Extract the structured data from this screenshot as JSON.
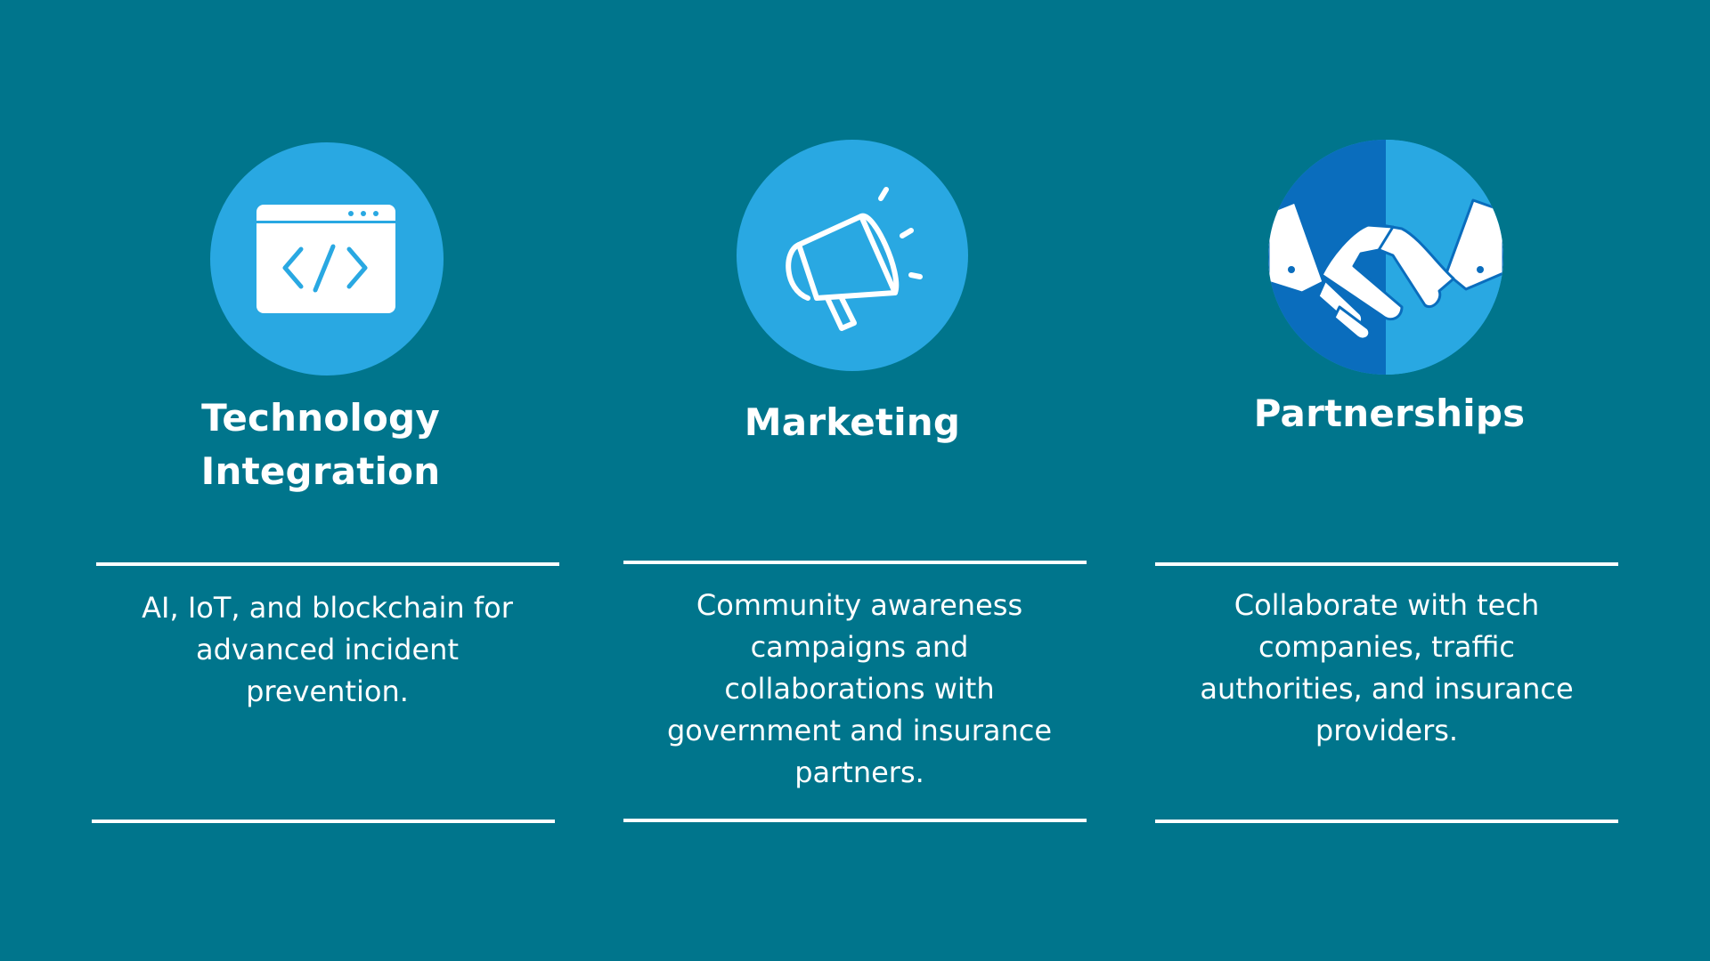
{
  "colors": {
    "background": "#00758c",
    "icon_light": "#29a8e2",
    "icon_dark": "#0a6dbd",
    "foreground": "#ffffff"
  },
  "columns": [
    {
      "icon": "code-window-icon",
      "title_line1": "Technology",
      "title_line2": "Integration",
      "description_lines": [
        "AI, IoT, and blockchain for",
        "advanced incident",
        "prevention."
      ]
    },
    {
      "icon": "megaphone-icon",
      "title_line1": "Marketing",
      "description_lines": [
        "Community awareness",
        "campaigns and",
        "collaborations with",
        "government and insurance",
        "partners."
      ]
    },
    {
      "icon": "handshake-icon",
      "title_line1": "Partnerships",
      "description_lines": [
        "Collaborate with tech",
        "companies, traffic",
        "authorities, and insurance",
        "providers."
      ]
    }
  ]
}
